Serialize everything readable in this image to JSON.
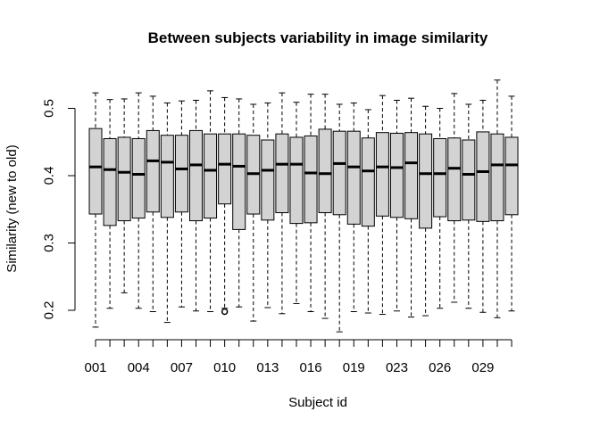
{
  "chart_data": {
    "type": "box",
    "title": "Between subjects variability in image similarity",
    "xlabel": "Subject id",
    "ylabel": "Similarity (new to old)",
    "ylim": [
      0.15,
      0.55
    ],
    "y_ticks": [
      "0.2",
      "0.3",
      "0.4",
      "0.5"
    ],
    "x_tick_labels": [
      "001",
      "004",
      "007",
      "010",
      "013",
      "016",
      "019",
      "023",
      "026",
      "029"
    ],
    "box_color": "#d3d3d3",
    "boxes": [
      {
        "lo": 0.175,
        "q1": 0.343,
        "med": 0.413,
        "q3": 0.47,
        "hi": 0.523
      },
      {
        "lo": 0.203,
        "q1": 0.326,
        "med": 0.409,
        "q3": 0.455,
        "hi": 0.513
      },
      {
        "lo": 0.226,
        "q1": 0.333,
        "med": 0.405,
        "q3": 0.457,
        "hi": 0.514
      },
      {
        "lo": 0.203,
        "q1": 0.337,
        "med": 0.402,
        "q3": 0.455,
        "hi": 0.523
      },
      {
        "lo": 0.198,
        "q1": 0.346,
        "med": 0.422,
        "q3": 0.467,
        "hi": 0.518
      },
      {
        "lo": 0.182,
        "q1": 0.338,
        "med": 0.42,
        "q3": 0.46,
        "hi": 0.508
      },
      {
        "lo": 0.205,
        "q1": 0.346,
        "med": 0.41,
        "q3": 0.46,
        "hi": 0.511
      },
      {
        "lo": 0.199,
        "q1": 0.333,
        "med": 0.416,
        "q3": 0.467,
        "hi": 0.512
      },
      {
        "lo": 0.198,
        "q1": 0.337,
        "med": 0.408,
        "q3": 0.462,
        "hi": 0.526
      },
      {
        "lo": 0.203,
        "q1": 0.358,
        "med": 0.417,
        "q3": 0.462,
        "hi": 0.516,
        "outliers": [
          0.198
        ]
      },
      {
        "lo": 0.205,
        "q1": 0.32,
        "med": 0.414,
        "q3": 0.462,
        "hi": 0.514
      },
      {
        "lo": 0.184,
        "q1": 0.343,
        "med": 0.403,
        "q3": 0.46,
        "hi": 0.506
      },
      {
        "lo": 0.204,
        "q1": 0.334,
        "med": 0.408,
        "q3": 0.453,
        "hi": 0.508
      },
      {
        "lo": 0.195,
        "q1": 0.345,
        "med": 0.417,
        "q3": 0.462,
        "hi": 0.523
      },
      {
        "lo": 0.21,
        "q1": 0.329,
        "med": 0.417,
        "q3": 0.457,
        "hi": 0.509
      },
      {
        "lo": 0.198,
        "q1": 0.33,
        "med": 0.404,
        "q3": 0.459,
        "hi": 0.521
      },
      {
        "lo": 0.188,
        "q1": 0.345,
        "med": 0.403,
        "q3": 0.469,
        "hi": 0.521
      },
      {
        "lo": 0.168,
        "q1": 0.342,
        "med": 0.418,
        "q3": 0.466,
        "hi": 0.506
      },
      {
        "lo": 0.198,
        "q1": 0.328,
        "med": 0.413,
        "q3": 0.466,
        "hi": 0.508
      },
      {
        "lo": 0.196,
        "q1": 0.325,
        "med": 0.407,
        "q3": 0.456,
        "hi": 0.498
      },
      {
        "lo": 0.194,
        "q1": 0.34,
        "med": 0.413,
        "q3": 0.464,
        "hi": 0.519
      },
      {
        "lo": 0.199,
        "q1": 0.338,
        "med": 0.412,
        "q3": 0.463,
        "hi": 0.512
      },
      {
        "lo": 0.19,
        "q1": 0.336,
        "med": 0.419,
        "q3": 0.464,
        "hi": 0.515
      },
      {
        "lo": 0.192,
        "q1": 0.322,
        "med": 0.403,
        "q3": 0.462,
        "hi": 0.503
      },
      {
        "lo": 0.203,
        "q1": 0.339,
        "med": 0.403,
        "q3": 0.455,
        "hi": 0.5
      },
      {
        "lo": 0.212,
        "q1": 0.333,
        "med": 0.411,
        "q3": 0.456,
        "hi": 0.522
      },
      {
        "lo": 0.203,
        "q1": 0.334,
        "med": 0.402,
        "q3": 0.453,
        "hi": 0.506
      },
      {
        "lo": 0.197,
        "q1": 0.332,
        "med": 0.406,
        "q3": 0.465,
        "hi": 0.512
      },
      {
        "lo": 0.189,
        "q1": 0.333,
        "med": 0.416,
        "q3": 0.462,
        "hi": 0.542
      },
      {
        "lo": 0.199,
        "q1": 0.342,
        "med": 0.416,
        "q3": 0.457,
        "hi": 0.518
      }
    ]
  }
}
